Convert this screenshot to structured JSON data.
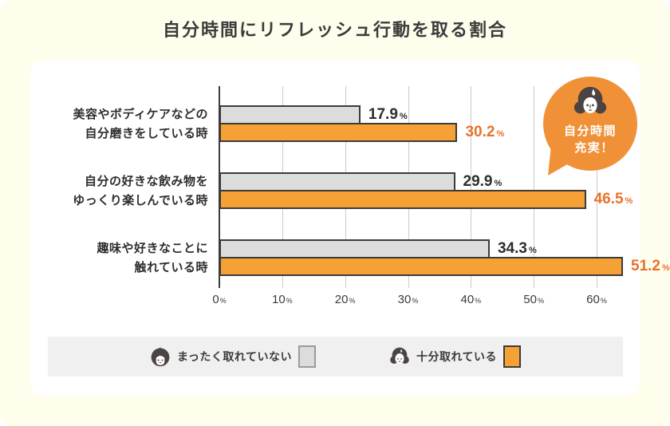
{
  "title": "自分時間にリフレッシュ行動を取る割合",
  "chart_data": {
    "type": "bar",
    "orientation": "horizontal",
    "title": "自分時間にリフレッシュ行動を取る割合",
    "categories": [
      [
        "美容やボディケアなどの",
        "自分磨きをしている時"
      ],
      [
        "自分の好きな飲み物を",
        "ゆっくり楽しんでいる時"
      ],
      [
        "趣味や好きなことに",
        "触れている時"
      ]
    ],
    "series": [
      {
        "name": "まったく取れていない",
        "values": [
          17.9,
          29.9,
          34.3
        ],
        "color": "#DCDCDC",
        "value_color": "#2E2E2E",
        "swatch_border": "#9B9B9B"
      },
      {
        "name": "十分取れている",
        "values": [
          30.2,
          46.5,
          51.2
        ],
        "color": "#F5A136",
        "value_color": "#E8722A",
        "swatch_border": "#3B3B3B"
      }
    ],
    "xlabel": "",
    "ylabel": "",
    "xlim": [
      0,
      60
    ],
    "x_ticks": [
      "0",
      "10",
      "20",
      "30",
      "40",
      "50",
      "60"
    ],
    "tick_unit": "%",
    "value_unit": "%",
    "grid": true,
    "legend_position": "bottom"
  },
  "bubble": {
    "lines": [
      "自分時間",
      "充実！"
    ],
    "color": "#F09138",
    "icon": "woman-wavy-hair-face-icon"
  },
  "legend": {
    "items": [
      {
        "label": "まったく取れていない",
        "icon": "woman-bob-hair-face-icon"
      },
      {
        "label": "十分取れている",
        "icon": "woman-wavy-hair-face-icon"
      }
    ]
  },
  "colors": {
    "page_background": "#FFFDEB",
    "card_background": "#FFFFFF",
    "bar_border": "#3B3B3B",
    "gridline": "#CBCBCB",
    "legend_background": "#F0F0F0",
    "title_text": "#3B3B3B",
    "icon_dark": "#4C4442"
  }
}
